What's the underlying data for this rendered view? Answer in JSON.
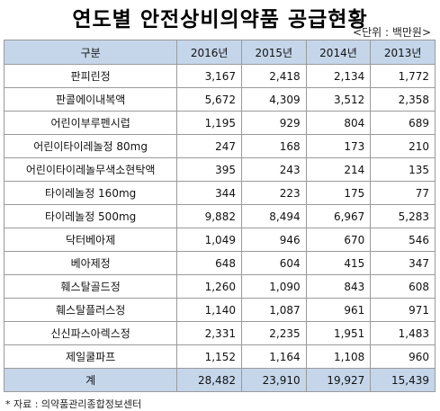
{
  "title": "연도별 안전상비의약품 공급현황",
  "unit": "<단위 : 백만원>",
  "headers": [
    "구분",
    "2016년",
    "2015년",
    "2014년",
    "2013년"
  ],
  "rows": [
    {
      "name": "판피린정",
      "values": [
        "3,167",
        "2,418",
        "2,134",
        "1,772"
      ]
    },
    {
      "name": "판콜에이내복액",
      "values": [
        "5,672",
        "4,309",
        "3,512",
        "2,358"
      ]
    },
    {
      "name": "어린이부루펜시럽",
      "values": [
        "1,195",
        "929",
        "804",
        "689"
      ]
    },
    {
      "name": "어린이타이레놀정 80mg",
      "values": [
        "247",
        "168",
        "173",
        "210"
      ]
    },
    {
      "name": "어린이타이레놀무색소현탁액",
      "values": [
        "395",
        "243",
        "214",
        "135"
      ]
    },
    {
      "name": "타이레놀정 160mg",
      "values": [
        "344",
        "223",
        "175",
        "77"
      ]
    },
    {
      "name": "타이레놀정 500mg",
      "values": [
        "9,882",
        "8,494",
        "6,967",
        "5,283"
      ]
    },
    {
      "name": "닥터베아제",
      "values": [
        "1,049",
        "946",
        "670",
        "546"
      ]
    },
    {
      "name": "베아제정",
      "values": [
        "648",
        "604",
        "415",
        "347"
      ]
    },
    {
      "name": "훼스탈골드정",
      "values": [
        "1,260",
        "1,090",
        "843",
        "608"
      ]
    },
    {
      "name": "훼스탈플러스정",
      "values": [
        "1,140",
        "1,087",
        "961",
        "971"
      ]
    },
    {
      "name": "신신파스아렉스정",
      "values": [
        "2,331",
        "2,235",
        "1,951",
        "1,483"
      ]
    },
    {
      "name": "제일쿨파프",
      "values": [
        "1,152",
        "1,164",
        "1,108",
        "960"
      ]
    }
  ],
  "total": {
    "name": "계",
    "values": [
      "28,482",
      "23,910",
      "19,927",
      "15,439"
    ]
  },
  "source": "* 자료 : 의약품관리종합정보센터"
}
